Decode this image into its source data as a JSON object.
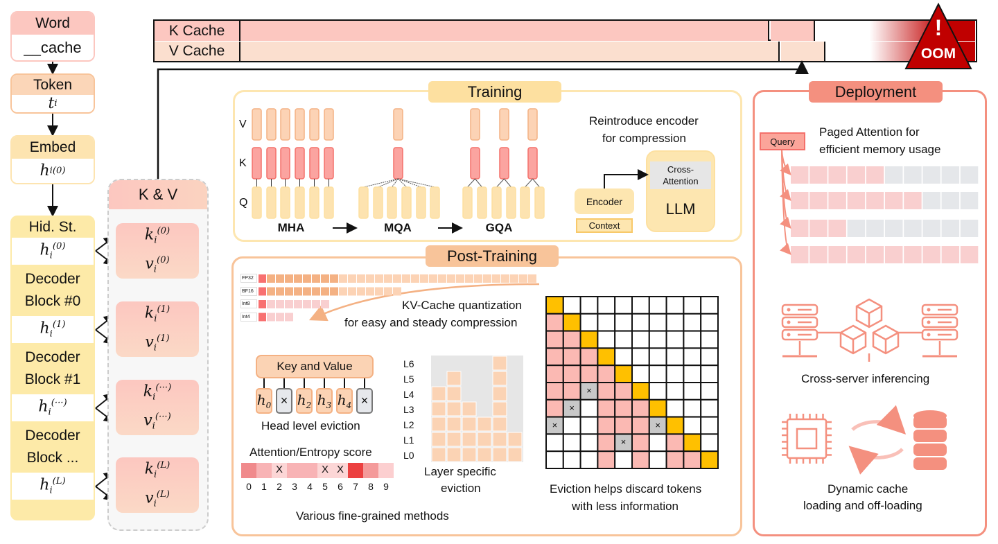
{
  "pipeline": {
    "word": {
      "label": "Word",
      "value": "__cache"
    },
    "token": {
      "label": "Token",
      "value": "t",
      "sub": "i"
    },
    "embed": {
      "label": "Embed",
      "value": "h",
      "sub": "i",
      "sup": "(0)"
    },
    "hidden": {
      "label": "Hid. St.",
      "rows": [
        {
          "type": "h",
          "sup": "(0)"
        },
        {
          "type": "block",
          "text": "Decoder Block #0"
        },
        {
          "type": "h",
          "sup": "(1)"
        },
        {
          "type": "block",
          "text": "Decoder Block #1"
        },
        {
          "type": "h",
          "sup": "(···)"
        },
        {
          "type": "block",
          "text": "Decoder Block ..."
        },
        {
          "type": "h",
          "sup": "(L)"
        }
      ]
    }
  },
  "kv": {
    "title": "K & V",
    "cards": [
      {
        "sup": "(0)"
      },
      {
        "sup": "(1)"
      },
      {
        "sup": "(···)"
      },
      {
        "sup": "(L)"
      }
    ]
  },
  "cache": {
    "k_label": "K Cache",
    "v_label": "V Cache",
    "oom_label": "OOM",
    "oom_mark": "!"
  },
  "training": {
    "title": "Training",
    "row_labels": [
      "V",
      "K",
      "Q"
    ],
    "methods": [
      "MHA",
      "MQA",
      "GQA"
    ],
    "encoder_caption_1": "Reintroduce encoder",
    "encoder_caption_2": "for compression",
    "llm": "LLM",
    "cross_attention_1": "Cross-",
    "cross_attention_2": "Attention",
    "encoder": "Encoder",
    "context": "Context"
  },
  "post_training": {
    "title": "Post-Training",
    "quantization": {
      "formats": [
        {
          "name": "FP32",
          "dark": 8,
          "light": 22
        },
        {
          "name": "BF16",
          "dark": 8,
          "light": 7
        },
        {
          "name": "Int8",
          "dark": 0,
          "light": 7
        },
        {
          "name": "Int4",
          "dark": 0,
          "light": 3
        }
      ],
      "caption_1": "KV-Cache quantization",
      "caption_2": "for easy and steady compression"
    },
    "head_eviction": {
      "kv_label": "Key and Value",
      "heads": [
        "h0",
        "x",
        "h2",
        "h3",
        "h4",
        "x"
      ],
      "caption": "Head level eviction"
    },
    "score": {
      "title": "Attention/Entropy score",
      "indices": [
        "0",
        "1",
        "2",
        "3",
        "4",
        "5",
        "6",
        "7",
        "8",
        "9"
      ],
      "colors": [
        "#f08a8c",
        "#f8b3b5",
        "#fcd6d6",
        "#f8b3b5",
        "#f8b3b5",
        "#fcd6d6",
        "#fcd6d6",
        "#ec4040",
        "#f49a9a",
        "#fccfd0"
      ],
      "evicted": [
        2,
        5,
        6
      ],
      "evicted_mark": "X"
    },
    "layer_eviction": {
      "layers": [
        "L6",
        "L5",
        "L4",
        "L3",
        "L2",
        "L1",
        "L0"
      ],
      "kept_layers_per_column": [
        5,
        6,
        4,
        3,
        7,
        2
      ],
      "caption_1": "Layer specific",
      "caption_2": "eviction"
    },
    "matrix": {
      "legend": "Y=current token, P=kept, W=masked, X=evicted",
      "rows": [
        "YWWWWWWWWW",
        "PYWWWWWWWW",
        "PPYWWWWWWW",
        "PPPYWWWWWW",
        "PPPPYWWWWW",
        "PPXPPYWWWW",
        "PXWPPPYWWW",
        "XWWPPPXYWW",
        "WWWPXPWPYW",
        "WWWPWPWPPY"
      ],
      "evicted_mark": "×",
      "caption_1": "Eviction helps discard tokens",
      "caption_2": "with less information"
    },
    "footer": "Various fine-grained methods"
  },
  "deployment": {
    "title": "Deployment",
    "query": "Query",
    "paged_caption_1": "Paged Attention for",
    "paged_caption_2": "efficient memory usage",
    "paged_rows_filled": [
      5,
      7,
      3,
      10
    ],
    "paged_blocks_per_row": 10,
    "server_caption": "Cross-server inferencing",
    "offload_caption_1": "Dynamic cache",
    "offload_caption_2": "loading and off-loading"
  },
  "colors": {
    "pink": "#fcc7c0",
    "peach": "#fbd9c6",
    "yellow": "#fde6b0",
    "oom_red": "#c00000",
    "orange_border": "#f4b183",
    "deploy_border": "#f4907f",
    "gold": "#ffc000",
    "gray": "#c8c8c8"
  }
}
